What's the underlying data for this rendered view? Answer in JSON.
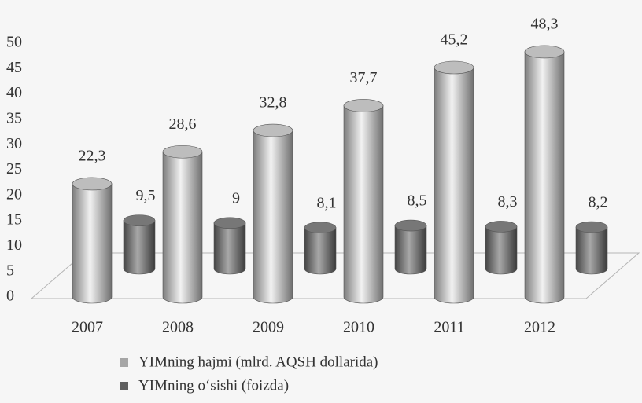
{
  "chart_data": {
    "type": "bar3d",
    "categories": [
      "2007",
      "2008",
      "2009",
      "2010",
      "2011",
      "2012"
    ],
    "series": [
      {
        "name": "YIMning hajmi (mlrd. AQSH dollarida)",
        "color": "#a6a6a6",
        "values": [
          22.3,
          28.6,
          32.8,
          37.7,
          45.2,
          48.3
        ],
        "value_labels": [
          "22,3",
          "28,6",
          "32,8",
          "37,7",
          "45,2",
          "48,3"
        ]
      },
      {
        "name": "YIMning o‘sishi (foizda)",
        "color": "#5f5f5f",
        "values": [
          9.5,
          9,
          8.1,
          8.5,
          8.3,
          8.2
        ],
        "value_labels": [
          "9,5",
          "9",
          "8,1",
          "8,5",
          "8,3",
          "8,2"
        ]
      }
    ],
    "ylim": [
      0,
      50
    ],
    "yticks": [
      0,
      5,
      10,
      15,
      20,
      25,
      30,
      35,
      40,
      45,
      50
    ]
  }
}
